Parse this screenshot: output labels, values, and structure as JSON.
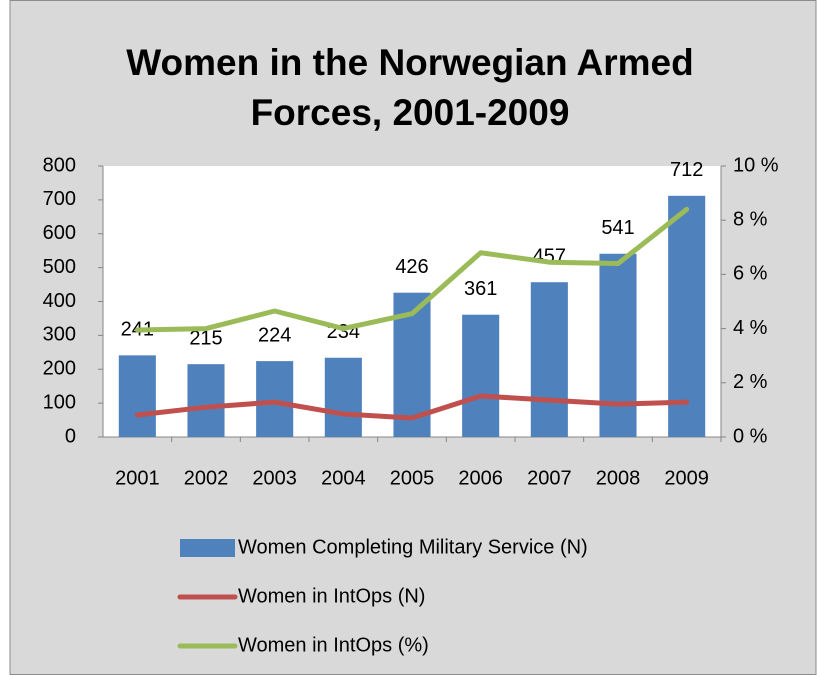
{
  "chart_data": {
    "type": "bar",
    "title": "Women in the Norwegian Armed Forces, 2001-2009",
    "categories": [
      "2001",
      "2002",
      "2003",
      "2004",
      "2005",
      "2006",
      "2007",
      "2008",
      "2009"
    ],
    "series": [
      {
        "name": "Women Completing Military Service (N)",
        "type": "bar",
        "color": "#4f81bd",
        "values": [
          241,
          215,
          224,
          234,
          426,
          361,
          457,
          541,
          712
        ]
      },
      {
        "name": "Women in IntOps (N)",
        "type": "line",
        "color": "#c0504d",
        "values": [
          65,
          88,
          103,
          68,
          56,
          121,
          109,
          97,
          103
        ]
      },
      {
        "name": "Women in IntOps (%)",
        "type": "line",
        "color": "#9bbb59",
        "axis": "y2",
        "values": [
          3.95,
          4.0,
          4.65,
          4.0,
          4.55,
          6.8,
          6.45,
          6.4,
          8.4
        ]
      }
    ],
    "ylim": [
      0,
      800
    ],
    "yticks": [
      0,
      100,
      200,
      300,
      400,
      500,
      600,
      700,
      800
    ],
    "y2lim": [
      0,
      10
    ],
    "y2ticks": [
      {
        "value": 0,
        "label": "0 %"
      },
      {
        "value": 2,
        "label": "2 %"
      },
      {
        "value": 4,
        "label": "4 %"
      },
      {
        "value": 6,
        "label": "6 %"
      },
      {
        "value": 8,
        "label": "8 %"
      },
      {
        "value": 10,
        "label": "10 %"
      }
    ],
    "legend": "bottom"
  }
}
